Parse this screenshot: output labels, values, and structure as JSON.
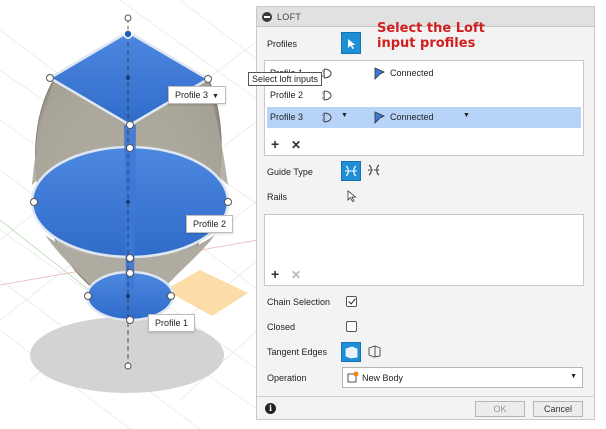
{
  "viewport": {
    "labels": {
      "profile1": "Profile 1",
      "profile2": "Profile 2",
      "profile3": "Profile 3"
    },
    "tooltip": "Select loft inputs"
  },
  "annotation": {
    "line1": "Select the Loft",
    "line2": "input profiles"
  },
  "panel": {
    "title": "LOFT",
    "profiles_label": "Profiles",
    "profiles": [
      {
        "name": "Profile 1",
        "status": "Connected",
        "selected": false,
        "has_dropdown": false
      },
      {
        "name": "Profile 2",
        "status": "",
        "selected": false,
        "has_dropdown": false
      },
      {
        "name": "Profile 3",
        "status": "Connected",
        "selected": true,
        "has_dropdown": true
      }
    ],
    "guide_type_label": "Guide Type",
    "rails_label": "Rails",
    "chain_selection_label": "Chain Selection",
    "chain_selection_checked": true,
    "closed_label": "Closed",
    "closed_checked": false,
    "tangent_edges_label": "Tangent Edges",
    "operation_label": "Operation",
    "operation_value": "New Body",
    "ok_label": "OK",
    "cancel_label": "Cancel"
  },
  "colors": {
    "accent": "#1e8fd6",
    "selected_row": "#b7d3f7",
    "annotation": "#d12020",
    "profile_fill": "#3b78d8"
  }
}
